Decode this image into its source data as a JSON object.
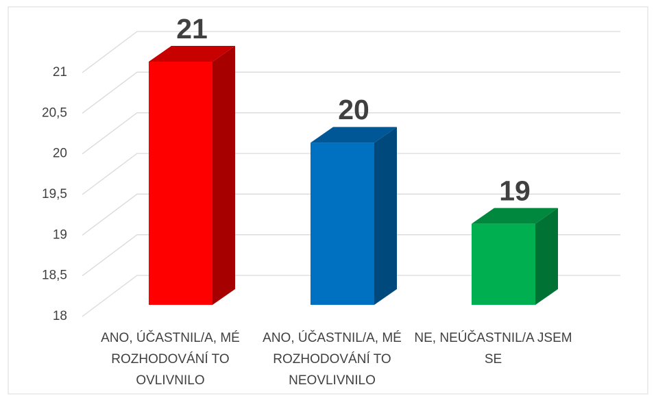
{
  "chart_data": {
    "type": "bar3d",
    "categories": [
      "ANO, ÚČASTNIL/A, MÉ ROZHODOVÁNÍ TO OVLIVNILO",
      "ANO, ÚČASTNIL/A, MÉ ROZHODOVÁNÍ TO NEOVLIVNILO",
      "NE, NEÚČASTNIL/A JSEM SE"
    ],
    "values": [
      21,
      20,
      19
    ],
    "colors": [
      "#ff0000",
      "#0070c0",
      "#00b050"
    ],
    "ylim": [
      18,
      21
    ],
    "yticks": [
      18,
      {
        "value": 18.5,
        "label": "18,5"
      },
      19,
      {
        "value": 19.5,
        "label": "19,5"
      },
      20,
      {
        "value": 20.5,
        "label": "20,5"
      },
      21
    ],
    "grid": true
  }
}
